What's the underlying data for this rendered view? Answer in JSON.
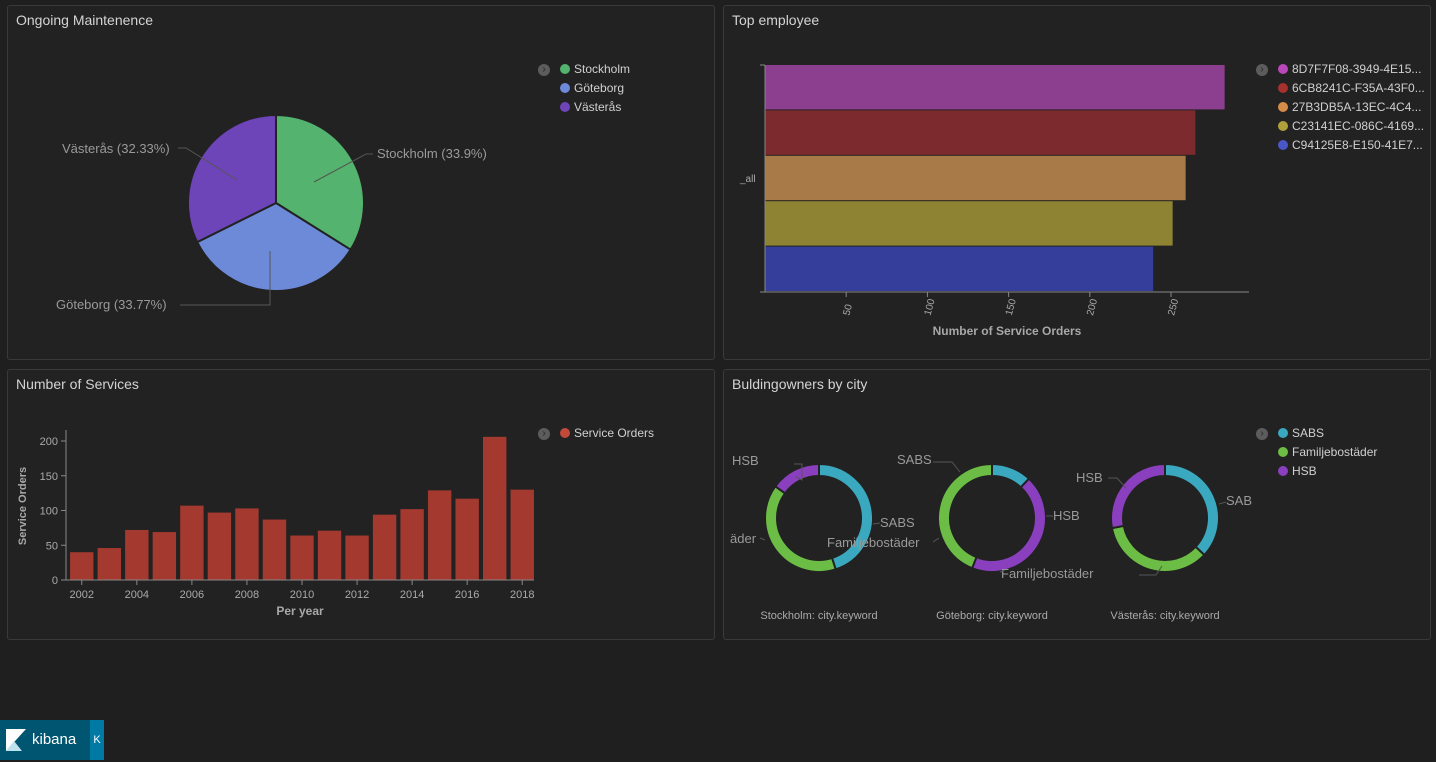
{
  "panels": {
    "ongoing": {
      "title": "Ongoing Maintenence",
      "chart_data": {
        "type": "pie",
        "title": "Ongoing Maintenence",
        "slices": [
          {
            "label": "Stockholm",
            "value": 33.9,
            "display": "Stockholm (33.9%)",
            "color": "#54b36e"
          },
          {
            "label": "Göteborg",
            "value": 33.77,
            "display": "Göteborg (33.77%)",
            "color": "#6c8ad8"
          },
          {
            "label": "Västerås",
            "value": 32.33,
            "display": "Västerås (32.33%)",
            "color": "#6e44b9"
          }
        ],
        "legend": [
          "Stockholm",
          "Göteborg",
          "Västerås"
        ]
      }
    },
    "top_employee": {
      "title": "Top employee",
      "chart_data": {
        "type": "bar",
        "orientation": "horizontal",
        "title": "Top employee",
        "category": "_all",
        "xlabel": "Number of Service Orders",
        "xlim": [
          0,
          300
        ],
        "ticks": [
          "50",
          "100",
          "150",
          "200",
          "250"
        ],
        "series": [
          {
            "name": "8D7F7F08-3949-4E15...",
            "value": 283,
            "color": "#8c3f8f"
          },
          {
            "name": "6CB8241C-F35A-43F0...",
            "value": 265,
            "color": "#7c2a2e"
          },
          {
            "name": "27B3DB5A-13EC-4C4...",
            "value": 259,
            "color": "#a87a48"
          },
          {
            "name": "C23141EC-086C-4169...",
            "value": 251,
            "color": "#8e8233"
          },
          {
            "name": "C94125E8-E150-41E7...",
            "value": 239,
            "color": "#353f9b"
          }
        ],
        "legend_colors": [
          "#b848b8",
          "#a8302f",
          "#d88c4a",
          "#b0a03a",
          "#4a57c8"
        ]
      }
    },
    "services": {
      "title": "Number of Services",
      "chart_data": {
        "type": "bar",
        "title": "Number of Services",
        "xlabel": "Per year",
        "ylabel": "Service Orders",
        "ylim": [
          0,
          220
        ],
        "yticks": [
          "0",
          "50",
          "100",
          "150",
          "200"
        ],
        "xticks": [
          "2002",
          "2004",
          "2006",
          "2008",
          "2010",
          "2012",
          "2014",
          "2016",
          "2018"
        ],
        "categories": [
          "2002",
          "2003",
          "2004",
          "2005",
          "2006",
          "2007",
          "2008",
          "2009",
          "2010",
          "2011",
          "2012",
          "2013",
          "2014",
          "2015",
          "2016",
          "2017",
          "2018"
        ],
        "series": [
          {
            "name": "Service Orders",
            "color": "#a3392f",
            "values": [
              40,
              46,
              72,
              69,
              107,
              97,
              103,
              87,
              64,
              71,
              64,
              94,
              102,
              129,
              117,
              206,
              130
            ]
          }
        ]
      }
    },
    "buildingowners": {
      "title": "Buldingowners by city",
      "chart_data": {
        "type": "pie",
        "variant": "donut",
        "title": "Buldingowners by city",
        "legend": [
          {
            "label": "SABS",
            "color": "#3aa9bf"
          },
          {
            "label": "Familjebostäder",
            "color": "#6cbd45"
          },
          {
            "label": "HSB",
            "color": "#8a3fbf"
          }
        ],
        "charts": [
          {
            "caption": "Stockholm: city.keyword",
            "slices": [
              {
                "label": "SABS",
                "value": 45
              },
              {
                "label": "Familjebostäder",
                "value": 40
              },
              {
                "label": "HSB",
                "value": 15
              }
            ],
            "labels": {
              "left_top": "HSB",
              "left_mid": "äder",
              "right": "SABS",
              "inner": ""
            }
          },
          {
            "caption": "Göteborg: city.keyword",
            "slices": [
              {
                "label": "SABS",
                "value": 12
              },
              {
                "label": "HSB",
                "value": 44
              },
              {
                "label": "Familjebostäder",
                "value": 44
              }
            ],
            "labels": {
              "left_top": "SABS",
              "left_mid": "",
              "right": "HSB",
              "inner": "Familjebostäder",
              "bottom": "Familjebostäder"
            }
          },
          {
            "caption": "Västerås: city.keyword",
            "slices": [
              {
                "label": "SABS",
                "value": 37
              },
              {
                "label": "Familjebostäder",
                "value": 35
              },
              {
                "label": "HSB",
                "value": 28
              }
            ],
            "labels": {
              "left_top": "HSB",
              "right": "SAB"
            }
          }
        ]
      }
    }
  },
  "kibana": {
    "label": "kibana",
    "collapse": "K"
  }
}
